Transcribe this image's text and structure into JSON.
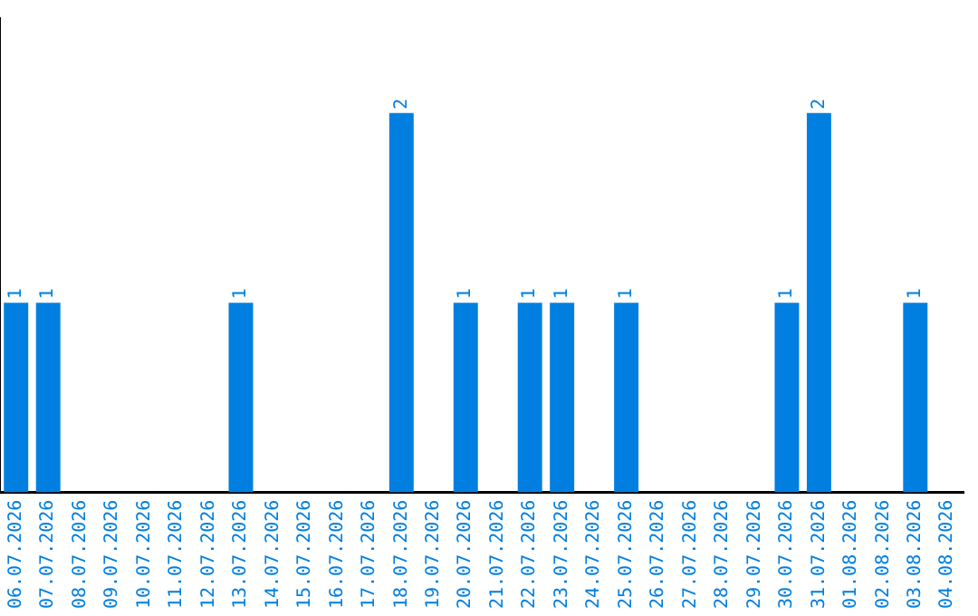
{
  "chart_data": {
    "type": "bar",
    "categories": [
      "06.07.2026",
      "07.07.2026",
      "08.07.2026",
      "09.07.2026",
      "10.07.2026",
      "11.07.2026",
      "12.07.2026",
      "13.07.2026",
      "14.07.2026",
      "15.07.2026",
      "16.07.2026",
      "17.07.2026",
      "18.07.2026",
      "19.07.2026",
      "20.07.2026",
      "21.07.2026",
      "22.07.2026",
      "23.07.2026",
      "24.07.2026",
      "25.07.2026",
      "26.07.2026",
      "27.07.2026",
      "28.07.2026",
      "29.07.2026",
      "30.07.2026",
      "31.07.2026",
      "01.08.2026",
      "02.08.2026",
      "03.08.2026",
      "04.08.2026"
    ],
    "values": [
      1,
      1,
      0,
      0,
      0,
      0,
      0,
      1,
      0,
      0,
      0,
      0,
      2,
      0,
      1,
      0,
      1,
      1,
      0,
      1,
      0,
      0,
      0,
      0,
      1,
      2,
      0,
      0,
      1,
      0
    ],
    "value_labels": [
      "1",
      "1",
      null,
      null,
      null,
      null,
      null,
      "1",
      null,
      null,
      null,
      null,
      "2",
      null,
      "1",
      null,
      "1",
      "1",
      null,
      "1",
      null,
      null,
      null,
      null,
      "1",
      "2",
      null,
      null,
      "1",
      null
    ],
    "color": "#007fe0",
    "grid": false,
    "legend": false
  }
}
